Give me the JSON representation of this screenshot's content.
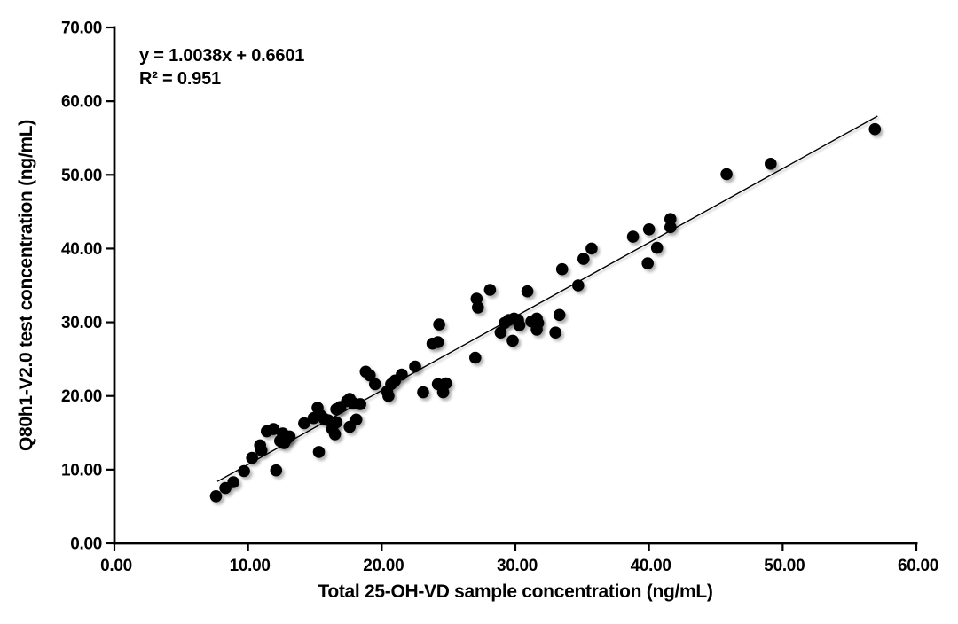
{
  "chart_data": {
    "type": "scatter",
    "title": "",
    "xlabel": "Total 25-OH-VD  sample concentration (ng/mL)",
    "ylabel": "Q80h1-V2.0 test concentration (ng/mL)",
    "xlim": [
      0,
      60
    ],
    "ylim": [
      0,
      70
    ],
    "grid": false,
    "legend_position": "none",
    "axis_color": "#000000",
    "point_color": "#060606",
    "trendline_color": "#000000",
    "x_ticks": [
      0,
      10,
      20,
      30,
      40,
      50,
      60
    ],
    "x_tick_labels": [
      "0.00",
      "10.00",
      "20.00",
      "30.00",
      "40.00",
      "50.00",
      "60.00"
    ],
    "y_ticks": [
      0,
      10,
      20,
      30,
      40,
      50,
      60,
      70
    ],
    "y_tick_labels": [
      "0.00",
      "10.00",
      "20.00",
      "30.00",
      "40.00",
      "50.00",
      "60.00",
      "70.00"
    ],
    "annotation": {
      "equation": "y = 1.0038x + 0.6601",
      "r_squared": "R² = 0.951"
    },
    "trendline": {
      "slope": 1.0038,
      "intercept": 0.6601,
      "x_start": 7.7,
      "x_end": 57.1
    },
    "points": [
      [
        7.6,
        6.4
      ],
      [
        8.3,
        7.5
      ],
      [
        8.9,
        8.3
      ],
      [
        9.7,
        9.8
      ],
      [
        10.3,
        11.6
      ],
      [
        10.9,
        13.3
      ],
      [
        11.0,
        12.6
      ],
      [
        11.4,
        15.2
      ],
      [
        11.9,
        15.5
      ],
      [
        12.1,
        9.9
      ],
      [
        12.4,
        13.9
      ],
      [
        12.6,
        14.9
      ],
      [
        12.9,
        14.2
      ],
      [
        13.1,
        14.5
      ],
      [
        12.7,
        13.6
      ],
      [
        14.2,
        16.3
      ],
      [
        14.9,
        17.0
      ],
      [
        15.2,
        18.4
      ],
      [
        15.4,
        17.4
      ],
      [
        15.7,
        16.9
      ],
      [
        15.3,
        12.4
      ],
      [
        16.0,
        16.7
      ],
      [
        16.3,
        15.5
      ],
      [
        16.5,
        14.8
      ],
      [
        16.6,
        16.4
      ],
      [
        16.6,
        18.2
      ],
      [
        16.9,
        18.5
      ],
      [
        17.4,
        19.3
      ],
      [
        17.6,
        19.6
      ],
      [
        17.9,
        19.0
      ],
      [
        18.4,
        18.9
      ],
      [
        17.6,
        15.8
      ],
      [
        18.1,
        16.8
      ],
      [
        18.8,
        23.3
      ],
      [
        19.1,
        22.8
      ],
      [
        19.5,
        21.6
      ],
      [
        20.4,
        20.6
      ],
      [
        20.5,
        20.0
      ],
      [
        20.7,
        21.6
      ],
      [
        21.0,
        22.1
      ],
      [
        21.5,
        22.9
      ],
      [
        22.5,
        24.0
      ],
      [
        23.1,
        20.5
      ],
      [
        24.2,
        21.6
      ],
      [
        24.8,
        21.7
      ],
      [
        24.6,
        20.5
      ],
      [
        23.8,
        27.1
      ],
      [
        24.2,
        27.3
      ],
      [
        24.3,
        29.7
      ],
      [
        27.0,
        25.2
      ],
      [
        27.1,
        33.2
      ],
      [
        27.2,
        32.0
      ],
      [
        28.1,
        34.4
      ],
      [
        30.9,
        34.2
      ],
      [
        28.9,
        28.6
      ],
      [
        29.2,
        29.9
      ],
      [
        29.5,
        30.3
      ],
      [
        29.9,
        30.5
      ],
      [
        30.2,
        30.3
      ],
      [
        30.3,
        29.6
      ],
      [
        29.8,
        27.5
      ],
      [
        31.2,
        30.1
      ],
      [
        31.6,
        30.5
      ],
      [
        31.7,
        29.9
      ],
      [
        31.6,
        29.0
      ],
      [
        33.3,
        31.0
      ],
      [
        33.0,
        28.6
      ],
      [
        33.5,
        37.2
      ],
      [
        34.7,
        35.0
      ],
      [
        35.1,
        38.6
      ],
      [
        35.7,
        40.0
      ],
      [
        38.8,
        41.6
      ],
      [
        40.0,
        42.6
      ],
      [
        39.9,
        38.0
      ],
      [
        40.6,
        40.1
      ],
      [
        41.6,
        44.0
      ],
      [
        41.6,
        42.9
      ],
      [
        45.8,
        50.1
      ],
      [
        49.1,
        51.5
      ],
      [
        56.9,
        56.2
      ]
    ]
  }
}
